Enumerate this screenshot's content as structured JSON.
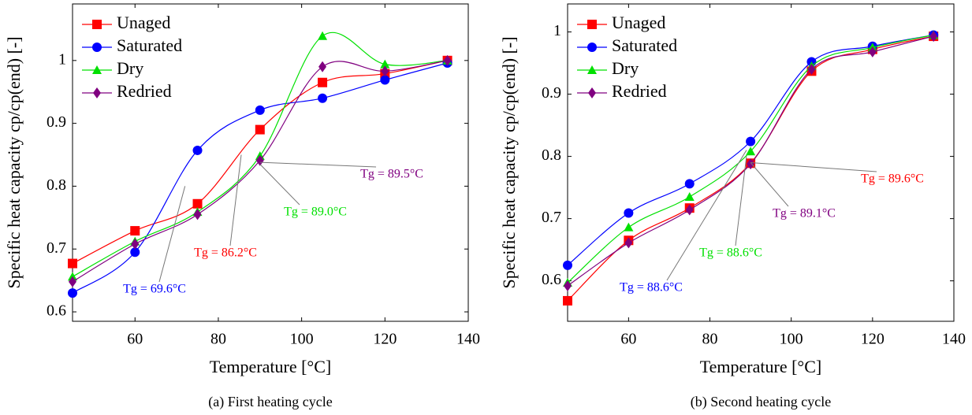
{
  "chart_data": [
    {
      "type": "line",
      "title": "(a) First heating cycle",
      "xlabel": "Temperature [°C]",
      "ylabel": "Specific heat capacity cp/cp(end) [-]",
      "x": [
        45,
        60,
        75,
        90,
        105,
        120,
        135
      ],
      "xlim": [
        45,
        140
      ],
      "xticks": [
        60,
        80,
        100,
        120,
        140
      ],
      "ylim": [
        0.585,
        1.09
      ],
      "yticks": [
        0.6,
        0.7,
        0.8,
        0.9,
        1
      ],
      "legend": "upper left",
      "series": [
        {
          "name": "Unaged",
          "color": "#ff0000",
          "marker": "square",
          "values": [
            0.677,
            0.729,
            0.772,
            0.89,
            0.965,
            0.979,
            1.0
          ]
        },
        {
          "name": "Saturated",
          "color": "#0000ff",
          "marker": "circle",
          "values": [
            0.63,
            0.695,
            0.857,
            0.921,
            0.94,
            0.969,
            0.996
          ]
        },
        {
          "name": "Dry",
          "color": "#00e000",
          "marker": "triangle",
          "values": [
            0.656,
            0.712,
            0.759,
            0.848,
            1.039,
            0.994,
            1.0
          ]
        },
        {
          "name": "Redried",
          "color": "#800080",
          "marker": "diamond",
          "values": [
            0.648,
            0.708,
            0.755,
            0.841,
            0.99,
            0.983,
            1.0
          ]
        }
      ],
      "annotations": [
        {
          "text": "Tg = 69.6°C",
          "color": "#0000ff",
          "xy": [
            72,
            0.8
          ]
        },
        {
          "text": "Tg = 86.2°C",
          "color": "#ff0000",
          "xy": [
            85.5,
            0.85
          ]
        },
        {
          "text": "Tg = 89.0°C",
          "color": "#00e000",
          "xy": [
            90,
            0.835
          ]
        },
        {
          "text": "Tg = 89.5°C",
          "color": "#800080",
          "xy": [
            90,
            0.838
          ]
        }
      ]
    },
    {
      "type": "line",
      "title": "(b) Second heating cycle",
      "xlabel": "Temperature [°C]",
      "ylabel": "Specific heat capacity cp/cp(end) [-]",
      "x": [
        45,
        60,
        75,
        90,
        105,
        120,
        135
      ],
      "xlim": [
        45,
        140
      ],
      "xticks": [
        60,
        80,
        100,
        120,
        140
      ],
      "ylim": [
        0.535,
        1.045
      ],
      "yticks": [
        0.6,
        0.7,
        0.8,
        0.9,
        1
      ],
      "legend": "upper left",
      "series": [
        {
          "name": "Unaged",
          "color": "#ff0000",
          "marker": "square",
          "values": [
            0.568,
            0.665,
            0.717,
            0.789,
            0.937,
            0.972,
            0.993
          ]
        },
        {
          "name": "Saturated",
          "color": "#0000ff",
          "marker": "circle",
          "values": [
            0.625,
            0.709,
            0.756,
            0.824,
            0.952,
            0.977,
            0.995
          ]
        },
        {
          "name": "Dry",
          "color": "#00e000",
          "marker": "triangle",
          "values": [
            0.597,
            0.686,
            0.735,
            0.808,
            0.945,
            0.975,
            0.995
          ]
        },
        {
          "name": "Redried",
          "color": "#800080",
          "marker": "diamond",
          "values": [
            0.592,
            0.661,
            0.714,
            0.788,
            0.94,
            0.968,
            0.993
          ]
        }
      ],
      "annotations": [
        {
          "text": "Tg = 89.6°C",
          "color": "#ff0000",
          "xy": [
            90,
            0.79
          ]
        },
        {
          "text": "Tg = 89.1°C",
          "color": "#800080",
          "xy": [
            90,
            0.79
          ]
        },
        {
          "text": "Tg = 88.6°C",
          "color": "#00e000",
          "xy": [
            89,
            0.8
          ]
        },
        {
          "text": "Tg = 88.6°C",
          "color": "#0000ff",
          "xy": [
            89,
            0.81
          ]
        }
      ]
    }
  ]
}
